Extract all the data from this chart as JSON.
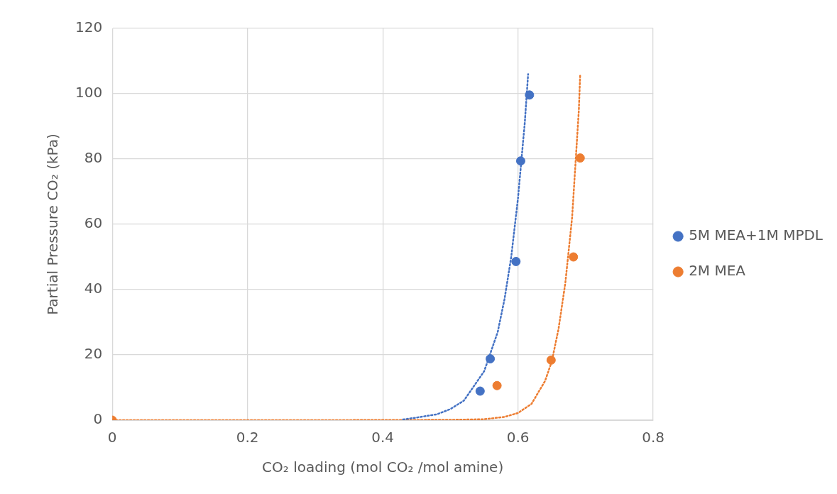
{
  "chart_data": {
    "type": "scatter",
    "xlabel": "CO₂ loading (mol CO₂ /mol amine)",
    "ylabel": "Partial Pressure CO₂ (kPa)",
    "xlim": [
      0,
      0.8
    ],
    "xticks": [
      0,
      0.2,
      0.4,
      0.6,
      0.8
    ],
    "ylim": [
      0,
      120
    ],
    "yticks": [
      0,
      20,
      40,
      60,
      80,
      100,
      120
    ],
    "grid": true,
    "legend": "right",
    "marker": "circle",
    "series": [
      {
        "type": "line",
        "color": "#4472c4",
        "line_style": "dotted",
        "marker": "none",
        "x": [
          0.43,
          0.45,
          0.48,
          0.5,
          0.52,
          0.55,
          0.57,
          0.58,
          0.59,
          0.6,
          0.61,
          0.615
        ],
        "values": [
          0.2,
          0.8,
          1.8,
          3.4,
          6,
          15,
          27,
          37,
          50,
          68,
          91,
          106
        ]
      },
      {
        "type": "line",
        "color": "#ed7d31",
        "line_style": "dotted",
        "marker": "none",
        "x": [
          0,
          0.3,
          0.5,
          0.55,
          0.58,
          0.6,
          0.62,
          0.64,
          0.65,
          0.66,
          0.67,
          0.68,
          0.69,
          0.692
        ],
        "values": [
          0,
          0,
          0.1,
          0.3,
          1,
          2.2,
          5,
          12,
          18,
          28,
          42,
          62,
          95,
          106
        ]
      },
      {
        "type": "scatter",
        "name": "5M MEA+1M MPDL",
        "color": "#4472c4",
        "x": [
          0.544,
          0.559,
          0.597,
          0.604,
          0.617
        ],
        "values": [
          8.9,
          18.8,
          48.6,
          79.4,
          99.6
        ]
      },
      {
        "type": "scatter",
        "name": "2M MEA",
        "color": "#ed7d31",
        "x": [
          0,
          0.569,
          0.649,
          0.682,
          0.692
        ],
        "values": [
          0,
          10.6,
          18.4,
          50,
          80.3
        ]
      }
    ]
  }
}
